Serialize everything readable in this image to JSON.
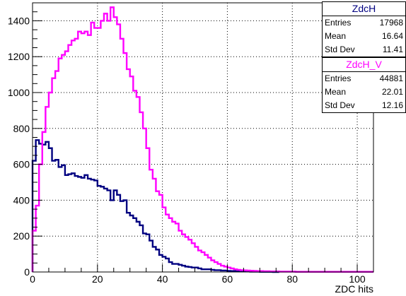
{
  "chart_data": {
    "type": "histogram",
    "title": "",
    "xlabel": "ZDC hits",
    "ylabel": "",
    "xlim": [
      0,
      105
    ],
    "ylim": [
      0,
      1500
    ],
    "bin_width": 1,
    "x_ticks": [
      "0",
      "20",
      "40",
      "60",
      "80",
      "100"
    ],
    "y_ticks": [
      "0",
      "200",
      "400",
      "600",
      "800",
      "1000",
      "1200",
      "1400"
    ],
    "grid": true,
    "series": [
      {
        "name": "ZdcH",
        "color": "#000080",
        "x": [
          0,
          1,
          2,
          3,
          4,
          5,
          6,
          7,
          8,
          9,
          10,
          11,
          12,
          13,
          14,
          15,
          16,
          17,
          18,
          19,
          20,
          21,
          22,
          23,
          24,
          25,
          26,
          27,
          28,
          29,
          30,
          31,
          32,
          33,
          34,
          35,
          36,
          37,
          38,
          39,
          40,
          41,
          42,
          43,
          44,
          45,
          46,
          47,
          48,
          49,
          50,
          51,
          52,
          53,
          54,
          55,
          56,
          57,
          58,
          59,
          60,
          61,
          62,
          63,
          64,
          65,
          66,
          67,
          68,
          69,
          70,
          71,
          72,
          73,
          74,
          75
        ],
        "values": [
          620,
          735,
          715,
          710,
          725,
          690,
          620,
          625,
          585,
          595,
          540,
          545,
          550,
          535,
          530,
          525,
          540,
          520,
          515,
          510,
          480,
          475,
          465,
          455,
          400,
          455,
          430,
          395,
          400,
          330,
          315,
          300,
          280,
          260,
          215,
          210,
          175,
          140,
          125,
          95,
          85,
          75,
          55,
          45,
          45,
          40,
          35,
          30,
          28,
          25,
          25,
          20,
          15,
          15,
          15,
          12,
          10,
          10,
          8,
          8,
          6,
          5,
          5,
          4,
          4,
          3,
          3,
          2,
          2,
          2,
          1,
          1,
          1,
          1,
          0,
          0
        ]
      },
      {
        "name": "ZdcH_V",
        "color": "#ff00ff",
        "x": [
          0,
          1,
          2,
          3,
          4,
          5,
          6,
          7,
          8,
          9,
          10,
          11,
          12,
          13,
          14,
          15,
          16,
          17,
          18,
          19,
          20,
          21,
          22,
          23,
          24,
          25,
          26,
          27,
          28,
          29,
          30,
          31,
          32,
          33,
          34,
          35,
          36,
          37,
          38,
          39,
          40,
          41,
          42,
          43,
          44,
          45,
          46,
          47,
          48,
          49,
          50,
          51,
          52,
          53,
          54,
          55,
          56,
          57,
          58,
          59,
          60,
          61,
          62,
          63,
          64,
          65,
          66,
          67,
          68,
          69,
          70,
          71,
          72,
          73,
          74,
          75,
          76,
          77,
          78,
          79,
          80,
          81,
          82,
          83,
          84,
          85,
          86,
          87,
          88,
          89,
          90,
          91,
          92,
          93,
          94,
          95,
          96,
          97,
          98,
          99,
          100,
          101,
          102,
          103,
          104
        ],
        "values": [
          230,
          370,
          600,
          780,
          920,
          1000,
          1080,
          1120,
          1190,
          1210,
          1230,
          1265,
          1290,
          1300,
          1340,
          1330,
          1340,
          1320,
          1390,
          1360,
          1360,
          1400,
          1440,
          1400,
          1475,
          1420,
          1380,
          1300,
          1220,
          1130,
          1090,
          1010,
          975,
          890,
          800,
          690,
          570,
          520,
          450,
          430,
          360,
          320,
          300,
          280,
          270,
          230,
          210,
          195,
          180,
          160,
          140,
          120,
          110,
          95,
          80,
          65,
          55,
          45,
          35,
          30,
          25,
          20,
          15,
          12,
          10,
          9,
          8,
          7,
          6,
          5,
          5,
          4,
          4,
          3,
          3,
          3,
          2,
          2,
          2,
          2,
          2,
          1,
          1,
          1,
          1,
          1,
          1,
          1,
          1,
          1,
          1,
          1,
          1,
          1,
          1,
          1,
          1,
          1,
          1,
          1,
          1,
          1,
          1,
          1,
          1
        ]
      }
    ],
    "stats_boxes": [
      {
        "name": "ZdcH",
        "title_color": "#000080",
        "entries": "17968",
        "mean": "16.64",
        "std_dev": "11.41"
      },
      {
        "name": "ZdcH_V",
        "title_color": "#ff00ff",
        "entries": "44881",
        "mean": "22.01",
        "std_dev": "12.16"
      }
    ],
    "stat_labels": {
      "entries": "Entries",
      "mean": "Mean",
      "std_dev": "Std Dev"
    }
  }
}
